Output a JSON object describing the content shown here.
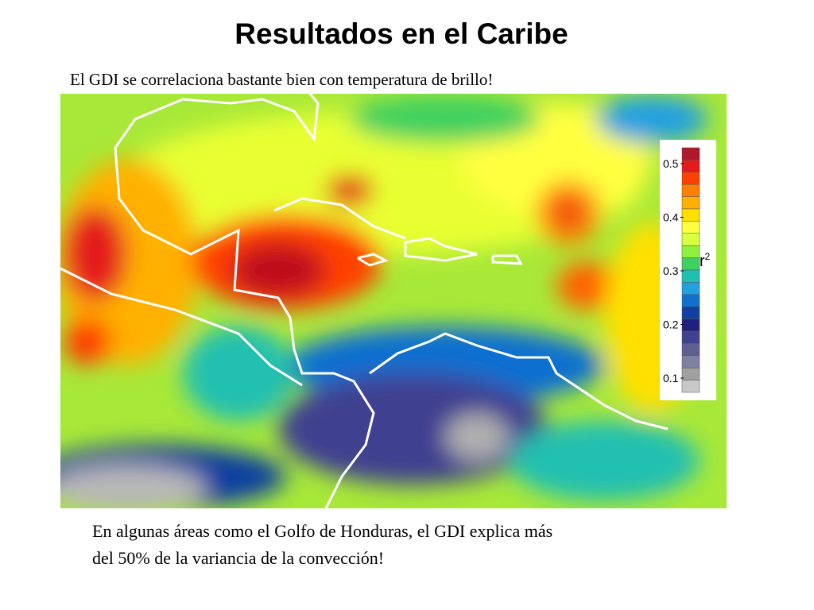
{
  "header": {
    "title": "Resultados en el Caribe",
    "subtitle": "El GDI se correlaciona bastante bien con temperatura de brillo!"
  },
  "legend": {
    "label": "r",
    "superscript": "2",
    "ticks": [
      0.5,
      0.4,
      0.3,
      0.2,
      0.1
    ]
  },
  "caption": {
    "lines": [
      "En algunas áreas como el Golfo de Honduras, el GDI explica más",
      "del 50% de la variancia de la convección!"
    ]
  }
}
